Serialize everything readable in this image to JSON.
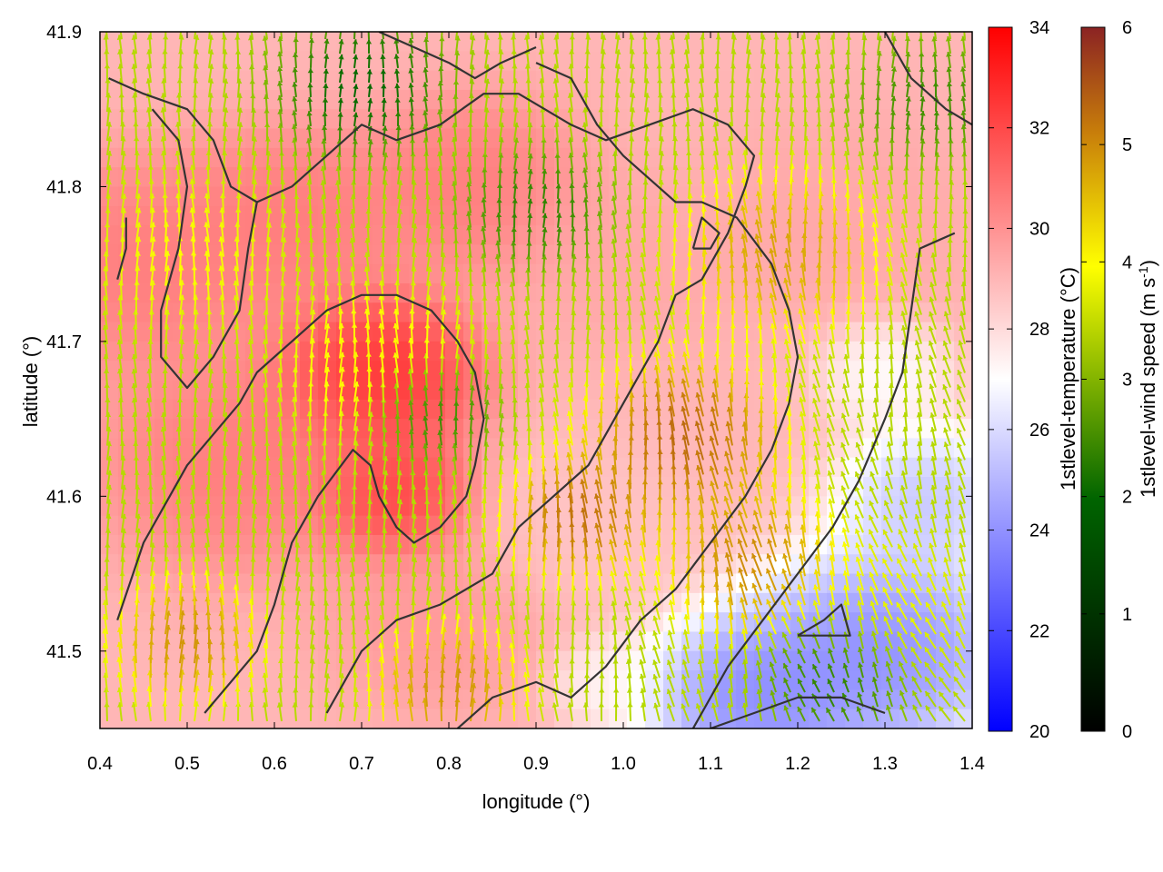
{
  "chart_data": {
    "type": "heatmap",
    "title": "",
    "xlabel": "longitude (°)",
    "ylabel": "latitude (°)",
    "xlim": [
      0.4,
      1.4
    ],
    "ylim": [
      41.45,
      41.9
    ],
    "x_ticks": [
      "0.4",
      "0.5",
      "0.6",
      "0.7",
      "0.8",
      "0.9",
      "1.0",
      "1.1",
      "1.2",
      "1.3",
      "1.4"
    ],
    "y_ticks": [
      "41.5",
      "41.6",
      "41.7",
      "41.8",
      "41.9"
    ],
    "grid": false,
    "overlays": [
      "vector field (wind arrows)",
      "contour lines"
    ],
    "colorbars": [
      {
        "label": "1stlevel-temperature (°C)",
        "range": [
          20,
          34
        ],
        "ticks": [
          "20",
          "22",
          "24",
          "26",
          "28",
          "30",
          "32",
          "34"
        ],
        "colors": [
          "#0000ff",
          "#ffffff",
          "#ff0000"
        ]
      },
      {
        "label_main": "1stlevel-wind speed (m s",
        "label_sup": "-1",
        "label_end": ")",
        "range": [
          0,
          6
        ],
        "ticks": [
          "0",
          "1",
          "2",
          "3",
          "4",
          "5",
          "6"
        ],
        "colors": [
          "#000000",
          "#006400",
          "#ffff00",
          "#c87e0a",
          "#8b2323"
        ]
      }
    ],
    "temperature_blobs": [
      {
        "lon": 0.45,
        "lat": 41.75,
        "temp": 31,
        "radius": 0.12
      },
      {
        "lon": 0.55,
        "lat": 41.62,
        "temp": 31,
        "radius": 0.12
      },
      {
        "lon": 0.72,
        "lat": 41.68,
        "temp": 33.5,
        "radius": 0.09
      },
      {
        "lon": 0.74,
        "lat": 41.6,
        "temp": 33,
        "radius": 0.07
      },
      {
        "lon": 0.62,
        "lat": 41.78,
        "temp": 31,
        "radius": 0.1
      },
      {
        "lon": 0.82,
        "lat": 41.8,
        "temp": 31,
        "radius": 0.1
      },
      {
        "lon": 0.78,
        "lat": 41.52,
        "temp": 30,
        "radius": 0.1
      },
      {
        "lon": 0.95,
        "lat": 41.58,
        "temp": 28.5,
        "radius": 0.1
      },
      {
        "lon": 1.0,
        "lat": 41.75,
        "temp": 29.5,
        "radius": 0.1
      },
      {
        "lon": 1.25,
        "lat": 41.78,
        "temp": 29.5,
        "radius": 0.12
      },
      {
        "lon": 1.3,
        "lat": 41.5,
        "temp": 22.5,
        "radius": 0.12
      },
      {
        "lon": 1.15,
        "lat": 41.47,
        "temp": 22.5,
        "radius": 0.1
      },
      {
        "lon": 1.35,
        "lat": 41.6,
        "temp": 24.5,
        "radius": 0.08
      },
      {
        "lon": 1.3,
        "lat": 41.68,
        "temp": 26.5,
        "radius": 0.06
      },
      {
        "lon": 0.98,
        "lat": 41.48,
        "temp": 27,
        "radius": 0.05
      }
    ],
    "wind_blobs": [
      {
        "lon": 1.07,
        "lat": 41.63,
        "speed": 5.9,
        "radius": 0.08
      },
      {
        "lon": 0.95,
        "lat": 41.58,
        "speed": 5.8,
        "radius": 0.06
      },
      {
        "lon": 1.15,
        "lat": 41.55,
        "speed": 5.5,
        "radius": 0.07
      },
      {
        "lon": 0.8,
        "lat": 41.47,
        "speed": 5.4,
        "radius": 0.06
      },
      {
        "lon": 1.18,
        "lat": 41.75,
        "speed": 5.2,
        "radius": 0.08
      },
      {
        "lon": 0.5,
        "lat": 41.5,
        "speed": 5.4,
        "radius": 0.06
      },
      {
        "lon": 0.72,
        "lat": 41.68,
        "speed": 4.3,
        "radius": 0.08
      },
      {
        "lon": 0.5,
        "lat": 41.75,
        "speed": 4.1,
        "radius": 0.08
      },
      {
        "lon": 1.3,
        "lat": 41.52,
        "speed": 4.0,
        "radius": 0.08
      },
      {
        "lon": 0.78,
        "lat": 41.65,
        "speed": 1.8,
        "radius": 0.05
      },
      {
        "lon": 0.7,
        "lat": 41.86,
        "speed": 1.5,
        "radius": 0.07
      },
      {
        "lon": 0.9,
        "lat": 41.78,
        "speed": 2.0,
        "radius": 0.06
      },
      {
        "lon": 1.25,
        "lat": 41.48,
        "speed": 1.8,
        "radius": 0.06
      },
      {
        "lon": 1.35,
        "lat": 41.85,
        "speed": 2.2,
        "radius": 0.06
      }
    ],
    "contours": [
      [
        [
          0.42,
          41.52
        ],
        [
          0.45,
          41.57
        ],
        [
          0.48,
          41.6
        ],
        [
          0.5,
          41.62
        ],
        [
          0.53,
          41.64
        ],
        [
          0.56,
          41.66
        ],
        [
          0.58,
          41.68
        ],
        [
          0.62,
          41.7
        ],
        [
          0.66,
          41.72
        ],
        [
          0.7,
          41.73
        ],
        [
          0.74,
          41.73
        ],
        [
          0.78,
          41.72
        ],
        [
          0.81,
          41.7
        ],
        [
          0.83,
          41.68
        ],
        [
          0.84,
          41.65
        ],
        [
          0.83,
          41.62
        ],
        [
          0.82,
          41.6
        ],
        [
          0.79,
          41.58
        ],
        [
          0.76,
          41.57
        ],
        [
          0.74,
          41.58
        ],
        [
          0.72,
          41.6
        ],
        [
          0.71,
          41.62
        ],
        [
          0.69,
          41.63
        ],
        [
          0.65,
          41.6
        ],
        [
          0.62,
          41.57
        ],
        [
          0.6,
          41.53
        ],
        [
          0.58,
          41.5
        ],
        [
          0.55,
          41.48
        ],
        [
          0.52,
          41.46
        ]
      ],
      [
        [
          0.66,
          41.46
        ],
        [
          0.7,
          41.5
        ],
        [
          0.74,
          41.52
        ],
        [
          0.79,
          41.53
        ],
        [
          0.85,
          41.55
        ],
        [
          0.88,
          41.58
        ],
        [
          0.92,
          41.6
        ],
        [
          0.96,
          41.62
        ],
        [
          1.0,
          41.66
        ],
        [
          1.04,
          41.7
        ],
        [
          1.06,
          41.73
        ],
        [
          1.09,
          41.74
        ],
        [
          1.12,
          41.77
        ],
        [
          1.14,
          41.8
        ],
        [
          1.15,
          41.82
        ],
        [
          1.12,
          41.84
        ],
        [
          1.08,
          41.85
        ],
        [
          1.03,
          41.84
        ],
        [
          0.98,
          41.83
        ],
        [
          0.94,
          41.84
        ],
        [
          0.88,
          41.86
        ],
        [
          0.84,
          41.86
        ],
        [
          0.79,
          41.84
        ],
        [
          0.74,
          41.83
        ],
        [
          0.7,
          41.84
        ],
        [
          0.66,
          41.82
        ],
        [
          0.62,
          41.8
        ],
        [
          0.58,
          41.79
        ],
        [
          0.55,
          41.8
        ],
        [
          0.53,
          41.83
        ],
        [
          0.5,
          41.85
        ],
        [
          0.45,
          41.86
        ],
        [
          0.41,
          41.87
        ]
      ],
      [
        [
          0.46,
          41.85
        ],
        [
          0.49,
          41.83
        ],
        [
          0.5,
          41.8
        ],
        [
          0.49,
          41.76
        ],
        [
          0.47,
          41.72
        ],
        [
          0.47,
          41.69
        ],
        [
          0.5,
          41.67
        ],
        [
          0.53,
          41.69
        ],
        [
          0.56,
          41.72
        ],
        [
          0.57,
          41.76
        ],
        [
          0.58,
          41.79
        ]
      ],
      [
        [
          0.81,
          41.45
        ],
        [
          0.85,
          41.47
        ],
        [
          0.9,
          41.48
        ],
        [
          0.94,
          41.47
        ],
        [
          0.98,
          41.49
        ],
        [
          1.02,
          41.52
        ],
        [
          1.06,
          41.54
        ],
        [
          1.1,
          41.57
        ],
        [
          1.14,
          41.6
        ],
        [
          1.17,
          41.63
        ],
        [
          1.19,
          41.66
        ],
        [
          1.2,
          41.69
        ],
        [
          1.19,
          41.72
        ],
        [
          1.17,
          41.75
        ],
        [
          1.13,
          41.78
        ],
        [
          1.09,
          41.79
        ],
        [
          1.06,
          41.79
        ],
        [
          1.04,
          41.8
        ],
        [
          1.0,
          41.82
        ],
        [
          0.97,
          41.84
        ],
        [
          0.94,
          41.87
        ],
        [
          0.9,
          41.88
        ]
      ],
      [
        [
          1.08,
          41.45
        ],
        [
          1.12,
          41.49
        ],
        [
          1.16,
          41.52
        ],
        [
          1.2,
          41.55
        ],
        [
          1.24,
          41.58
        ],
        [
          1.27,
          41.61
        ],
        [
          1.3,
          41.65
        ],
        [
          1.32,
          41.68
        ],
        [
          1.33,
          41.72
        ],
        [
          1.34,
          41.76
        ],
        [
          1.38,
          41.77
        ]
      ],
      [
        [
          1.1,
          41.45
        ],
        [
          1.15,
          41.46
        ],
        [
          1.2,
          41.47
        ],
        [
          1.25,
          41.47
        ],
        [
          1.3,
          41.46
        ]
      ],
      [
        [
          1.2,
          41.51
        ],
        [
          1.23,
          41.52
        ],
        [
          1.25,
          41.53
        ],
        [
          1.26,
          41.51
        ],
        [
          1.22,
          41.51
        ],
        [
          1.2,
          41.51
        ]
      ],
      [
        [
          1.08,
          41.76
        ],
        [
          1.1,
          41.76
        ],
        [
          1.11,
          41.77
        ],
        [
          1.09,
          41.78
        ],
        [
          1.08,
          41.76
        ]
      ],
      [
        [
          0.72,
          41.9
        ],
        [
          0.76,
          41.89
        ],
        [
          0.8,
          41.88
        ],
        [
          0.83,
          41.87
        ],
        [
          0.86,
          41.88
        ],
        [
          0.9,
          41.89
        ]
      ],
      [
        [
          1.3,
          41.9
        ],
        [
          1.33,
          41.87
        ],
        [
          1.37,
          41.85
        ],
        [
          1.4,
          41.84
        ]
      ],
      [
        [
          0.42,
          41.74
        ],
        [
          0.43,
          41.76
        ],
        [
          0.43,
          41.78
        ]
      ]
    ]
  }
}
